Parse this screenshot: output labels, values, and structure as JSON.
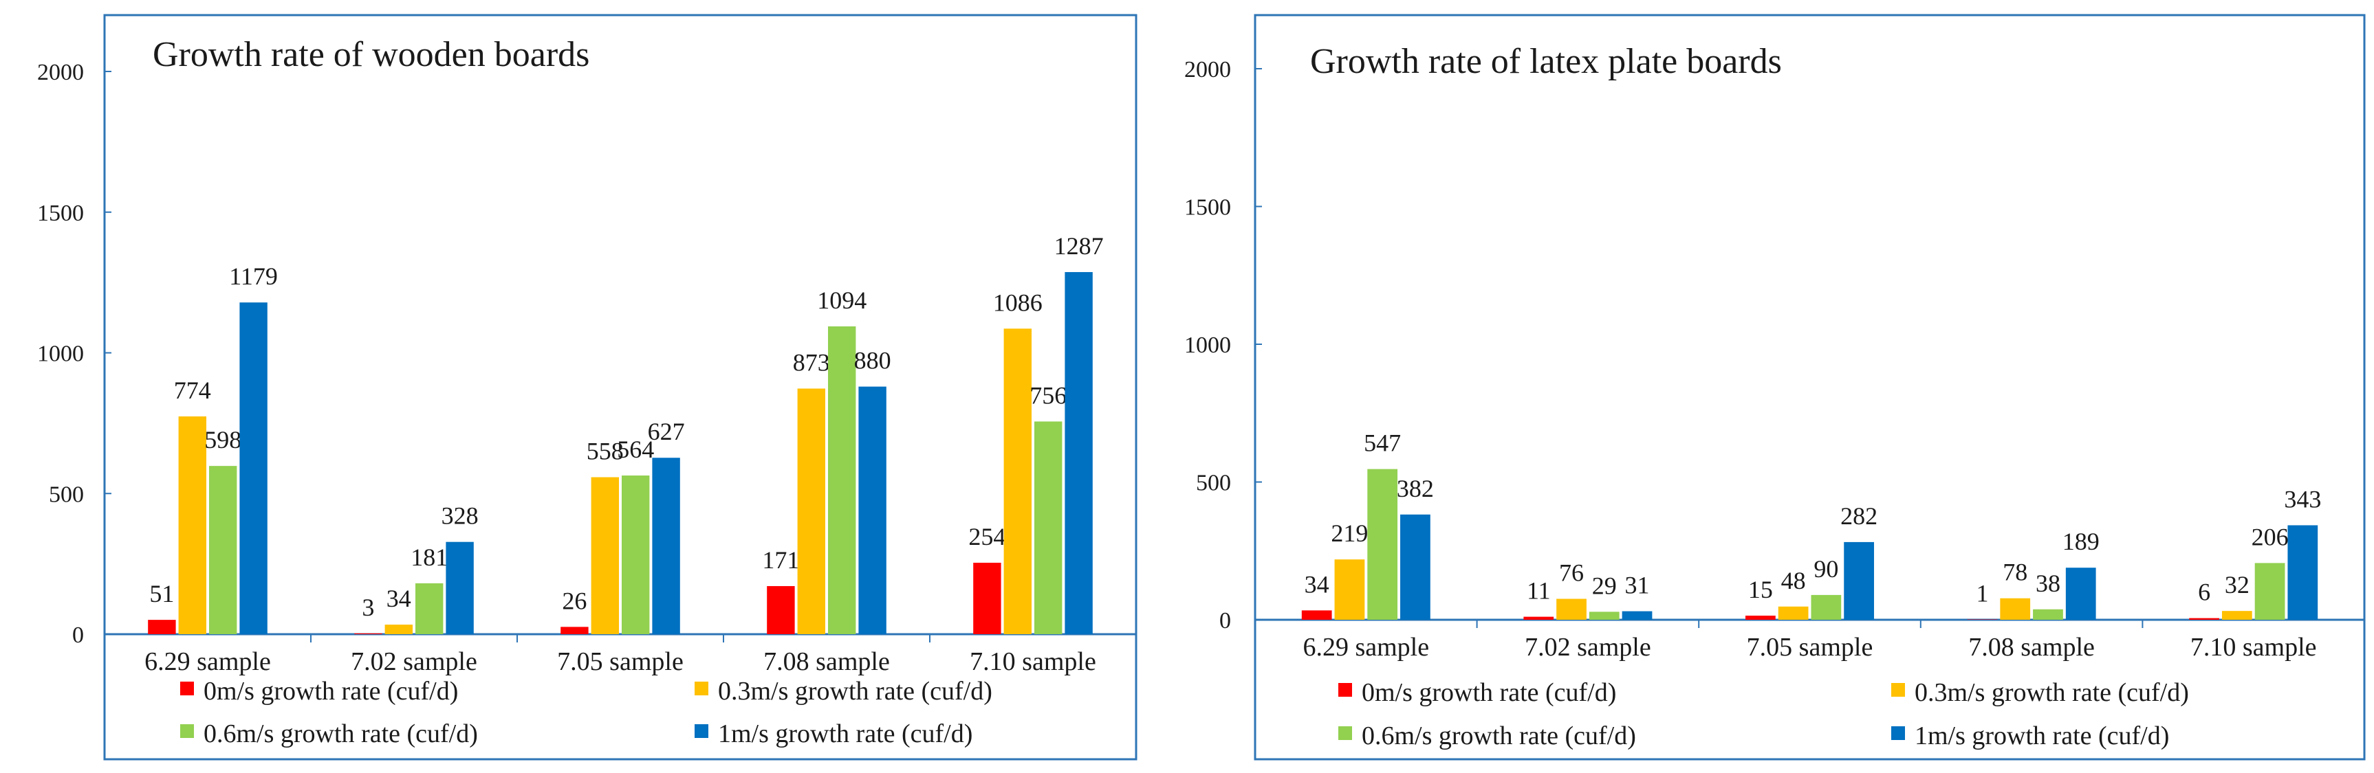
{
  "chart_data": [
    {
      "type": "bar",
      "title": "Growth rate of wooden boards",
      "xlabel": "",
      "ylabel": "",
      "ylim": [
        0,
        2000
      ],
      "yticks": [
        0,
        500,
        1000,
        1500,
        2000
      ],
      "categories": [
        "6.29 sample",
        "7.02 sample",
        "7.05 sample",
        "7.08 sample",
        "7.10 sample"
      ],
      "series": [
        {
          "name": "0m/s growth rate (cuf/d)",
          "color": "#ff0000",
          "values": [
            51,
            3,
            26,
            171,
            254
          ]
        },
        {
          "name": "0.3m/s growth rate (cuf/d)",
          "color": "#ffc000",
          "values": [
            774,
            34,
            558,
            873,
            1086
          ]
        },
        {
          "name": "0.6m/s growth rate (cuf/d)",
          "color": "#92d050",
          "values": [
            598,
            181,
            564,
            1094,
            756
          ]
        },
        {
          "name": "1m/s growth rate (cuf/d)",
          "color": "#0070c0",
          "values": [
            1179,
            328,
            627,
            880,
            1287
          ]
        }
      ]
    },
    {
      "type": "bar",
      "title": "Growth rate of latex plate boards",
      "xlabel": "",
      "ylabel": "",
      "ylim": [
        0,
        2000
      ],
      "yticks": [
        0,
        500,
        1000,
        1500,
        2000
      ],
      "categories": [
        "6.29 sample",
        "7.02 sample",
        "7.05 sample",
        "7.08 sample",
        "7.10 sample"
      ],
      "series": [
        {
          "name": "0m/s growth rate (cuf/d)",
          "color": "#ff0000",
          "values": [
            34,
            11,
            15,
            1,
            6
          ]
        },
        {
          "name": "0.3m/s growth rate (cuf/d)",
          "color": "#ffc000",
          "values": [
            219,
            76,
            48,
            78,
            32
          ]
        },
        {
          "name": "0.6m/s growth rate (cuf/d)",
          "color": "#92d050",
          "values": [
            547,
            29,
            90,
            38,
            206
          ]
        },
        {
          "name": "1m/s growth rate (cuf/d)",
          "color": "#0070c0",
          "values": [
            382,
            31,
            282,
            189,
            343
          ]
        }
      ]
    }
  ]
}
